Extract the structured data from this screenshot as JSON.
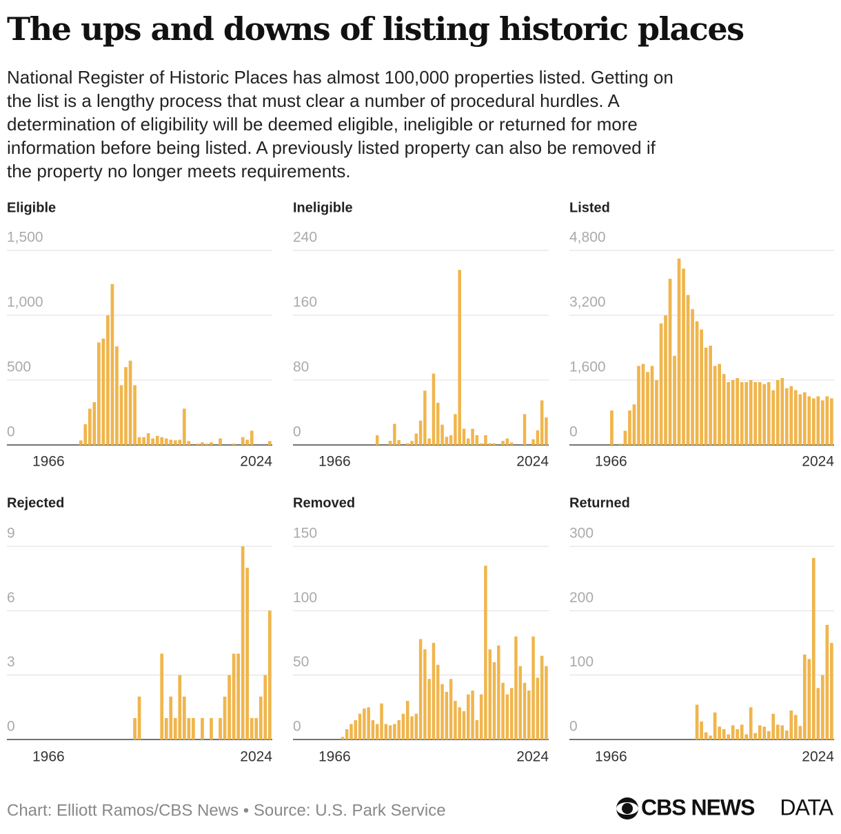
{
  "title": "The ups and downs of listing historic places",
  "subtitle": [
    "National Register of Historic Places has almost 100,000 properties listed. Getting on",
    "the list is a lengthy process that must clear a number of procedural hurdles. A",
    "determination of eligibility will be deemed eligible, ineligible or returned for more",
    "information before being listed. A previously listed property can also be removed if",
    "the property no longer meets requirements."
  ],
  "credit": "Chart: Elliott Ramos/CBS News • Source: U.S. Park Service",
  "logo": {
    "brand": "CBS NEWS",
    "suffix": "DATA"
  },
  "chart_data": [
    {
      "type": "bar",
      "title": "Eligible",
      "color": "#f0b54c",
      "xlim": [
        1966,
        2024
      ],
      "xticks": [
        1966,
        2024
      ],
      "ylim": [
        0,
        1500
      ],
      "yticks": [
        0,
        500,
        {
          "value": 1000,
          "label": "1,000"
        },
        {
          "value": 1500,
          "label": "1,500"
        }
      ],
      "grid": true,
      "values": [
        0,
        0,
        0,
        0,
        0,
        0,
        0,
        0,
        0,
        0,
        0,
        0,
        0,
        0,
        0,
        0,
        35,
        160,
        280,
        330,
        790,
        820,
        1000,
        1240,
        760,
        460,
        600,
        650,
        460,
        60,
        60,
        90,
        50,
        70,
        60,
        50,
        40,
        35,
        40,
        280,
        30,
        0,
        10,
        20,
        10,
        20,
        0,
        50,
        0,
        0,
        10,
        0,
        60,
        40,
        110,
        0,
        0,
        0,
        30
      ]
    },
    {
      "type": "bar",
      "title": "Ineligible",
      "color": "#f0b54c",
      "xlim": [
        1966,
        2024
      ],
      "xticks": [
        1966,
        2024
      ],
      "ylim": [
        0,
        240
      ],
      "yticks": [
        0,
        80,
        160,
        240
      ],
      "grid": true,
      "values": [
        0,
        0,
        0,
        0,
        0,
        0,
        0,
        0,
        0,
        0,
        0,
        0,
        0,
        0,
        0,
        0,
        0,
        0,
        0,
        12,
        0,
        0,
        5,
        26,
        6,
        0,
        2,
        5,
        14,
        30,
        67,
        8,
        88,
        52,
        25,
        10,
        12,
        38,
        216,
        20,
        8,
        20,
        12,
        2,
        12,
        2,
        2,
        0,
        5,
        8,
        3,
        0,
        0,
        38,
        0,
        7,
        18,
        55,
        34
      ]
    },
    {
      "type": "bar",
      "title": "Listed",
      "color": "#f0b54c",
      "xlim": [
        1966,
        2024
      ],
      "xticks": [
        1966,
        2024
      ],
      "ylim": [
        0,
        4800
      ],
      "yticks": [
        0,
        {
          "value": 1600,
          "label": "1,600"
        },
        {
          "value": 3200,
          "label": "3,200"
        },
        {
          "value": 4800,
          "label": "4,800"
        }
      ],
      "grid": true,
      "values": [
        0,
        0,
        0,
        0,
        0,
        0,
        0,
        0,
        0,
        850,
        0,
        30,
        350,
        850,
        1000,
        1950,
        2000,
        1800,
        1950,
        1600,
        3000,
        3200,
        4100,
        2200,
        4600,
        4350,
        3700,
        3350,
        3050,
        2850,
        2400,
        2450,
        1950,
        2000,
        1750,
        1550,
        1600,
        1650,
        1550,
        1550,
        1600,
        1550,
        1550,
        1500,
        1550,
        1350,
        1600,
        1650,
        1400,
        1450,
        1350,
        1250,
        1300,
        1200,
        1150,
        1200,
        1100,
        1200,
        1150
      ]
    },
    {
      "type": "bar",
      "title": "Rejected",
      "color": "#f0b54c",
      "xlim": [
        1966,
        2024
      ],
      "xticks": [
        1966,
        2024
      ],
      "ylim": [
        0,
        9
      ],
      "yticks": [
        0,
        3,
        6,
        9
      ],
      "grid": true,
      "values": [
        0,
        0,
        0,
        0,
        0,
        0,
        0,
        0,
        0,
        0,
        0,
        0,
        0,
        0,
        0,
        0,
        0,
        0,
        0,
        0,
        0,
        0,
        0,
        0,
        0,
        0,
        0,
        0,
        1,
        2,
        0,
        0,
        0,
        0,
        4,
        1,
        2,
        1,
        3,
        2,
        1,
        1,
        0,
        1,
        0,
        1,
        0,
        1,
        2,
        3,
        4,
        4,
        9,
        8,
        1,
        1,
        2,
        3,
        6
      ]
    },
    {
      "type": "bar",
      "title": "Removed",
      "color": "#f0b54c",
      "xlim": [
        1966,
        2024
      ],
      "xticks": [
        1966,
        2024
      ],
      "ylim": [
        0,
        150
      ],
      "yticks": [
        0,
        50,
        100,
        150
      ],
      "grid": true,
      "values": [
        0,
        0,
        0,
        0,
        0,
        0,
        0,
        0,
        0,
        0,
        0,
        2,
        8,
        12,
        15,
        20,
        24,
        25,
        15,
        12,
        28,
        12,
        11,
        12,
        15,
        20,
        30,
        18,
        20,
        78,
        70,
        47,
        75,
        58,
        43,
        37,
        47,
        30,
        25,
        22,
        35,
        38,
        15,
        35,
        135,
        70,
        60,
        73,
        44,
        35,
        40,
        80,
        57,
        44,
        38,
        80,
        48,
        65,
        57
      ]
    },
    {
      "type": "bar",
      "title": "Returned",
      "color": "#f0b54c",
      "xlim": [
        1966,
        2024
      ],
      "xticks": [
        1966,
        2024
      ],
      "ylim": [
        0,
        300
      ],
      "yticks": [
        0,
        100,
        200,
        300
      ],
      "grid": true,
      "values": [
        0,
        0,
        0,
        0,
        0,
        0,
        0,
        0,
        0,
        0,
        0,
        0,
        0,
        0,
        0,
        0,
        0,
        0,
        0,
        0,
        0,
        0,
        0,
        0,
        0,
        0,
        0,
        0,
        54,
        28,
        11,
        6,
        42,
        20,
        16,
        8,
        22,
        16,
        23,
        8,
        50,
        10,
        22,
        20,
        13,
        40,
        23,
        22,
        14,
        45,
        38,
        21,
        132,
        125,
        282,
        80,
        100,
        178,
        150
      ]
    }
  ]
}
